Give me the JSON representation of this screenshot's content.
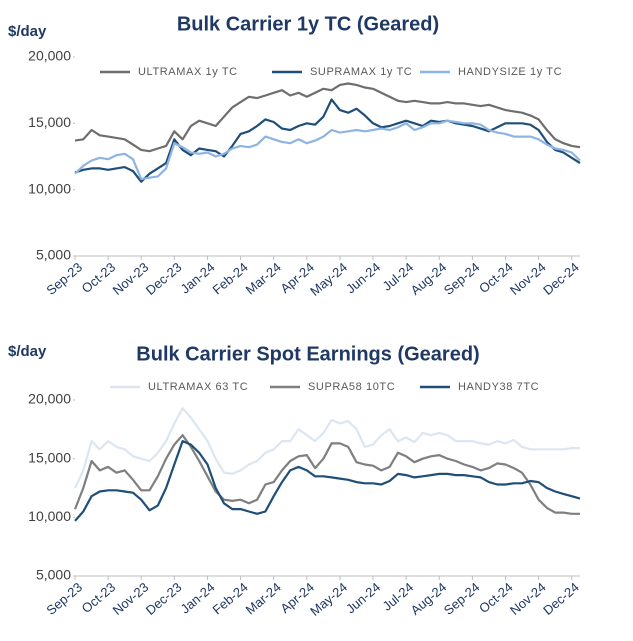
{
  "chart_data": [
    {
      "type": "line",
      "title": "Bulk Carrier 1y TC (Geared)",
      "y_label": "$/day",
      "categories": [
        "Sep-23",
        null,
        null,
        null,
        "Oct-23",
        null,
        null,
        null,
        "Nov-23",
        null,
        null,
        null,
        "Dec-23",
        null,
        null,
        null,
        "Jan-24",
        null,
        null,
        null,
        "Feb-24",
        null,
        null,
        null,
        "Mar-24",
        null,
        null,
        null,
        "Apr-24",
        null,
        null,
        null,
        "May-24",
        null,
        null,
        null,
        "Jun-24",
        null,
        null,
        null,
        "Jul-24",
        null,
        null,
        null,
        "Aug-24",
        null,
        null,
        null,
        "Sep-24",
        null,
        null,
        null,
        "Oct-24",
        null,
        null,
        null,
        "Nov-24",
        null,
        null,
        null,
        "Dec-24",
        null
      ],
      "ylim": [
        5000,
        20000
      ],
      "yticks": [
        {
          "value": 5000,
          "label": "5,000"
        },
        {
          "value": 10000,
          "label": "10,000"
        },
        {
          "value": 15000,
          "label": "15,000"
        },
        {
          "value": 20000,
          "label": "20,000"
        }
      ],
      "series": [
        {
          "name": "ULTRAMAX 1y TC",
          "color": "#6e6e6e",
          "values": [
            13700,
            13800,
            14500,
            14100,
            14000,
            13900,
            13800,
            13400,
            13000,
            12900,
            13100,
            13300,
            14400,
            13800,
            14800,
            15200,
            15000,
            14800,
            15500,
            16200,
            16600,
            17000,
            16900,
            17100,
            17300,
            17500,
            17100,
            17300,
            17000,
            17300,
            17600,
            17500,
            17900,
            18000,
            17900,
            17700,
            17600,
            17300,
            17000,
            16700,
            16600,
            16700,
            16600,
            16500,
            16500,
            16600,
            16500,
            16500,
            16400,
            16300,
            16400,
            16200,
            16000,
            15900,
            15800,
            15600,
            15300,
            14500,
            13800,
            13500,
            13300,
            13200
          ]
        },
        {
          "name": "SUPRAMAX 1y TC",
          "color": "#1f4e79",
          "values": [
            11300,
            11500,
            11600,
            11600,
            11500,
            11600,
            11700,
            11400,
            10600,
            11200,
            11600,
            12000,
            13800,
            13000,
            12600,
            13100,
            13000,
            12900,
            12500,
            13300,
            14200,
            14400,
            14800,
            15300,
            15100,
            14600,
            14500,
            14800,
            15000,
            14900,
            15500,
            16800,
            16000,
            15800,
            16100,
            15600,
            15000,
            14700,
            14800,
            15000,
            15200,
            15000,
            14800,
            15200,
            15100,
            15200,
            15000,
            14900,
            14800,
            14600,
            14400,
            14700,
            15000,
            15000,
            15000,
            14900,
            14500,
            13600,
            13000,
            12800,
            12400,
            12000
          ]
        },
        {
          "name": "HANDYSIZE 1y TC",
          "color": "#8db4e2",
          "values": [
            11200,
            11800,
            12200,
            12400,
            12300,
            12600,
            12700,
            12300,
            10800,
            10900,
            11000,
            11600,
            13500,
            13200,
            12800,
            12700,
            12800,
            12500,
            12700,
            13100,
            13300,
            13200,
            13400,
            14000,
            13800,
            13600,
            13500,
            13800,
            13500,
            13700,
            14000,
            14500,
            14300,
            14400,
            14500,
            14400,
            14500,
            14600,
            14500,
            14700,
            15000,
            14500,
            14700,
            15000,
            15000,
            15200,
            15100,
            15000,
            15000,
            14900,
            14500,
            14300,
            14200,
            14000,
            14000,
            14000,
            13800,
            13400,
            13100,
            13000,
            12800,
            12200
          ]
        }
      ]
    },
    {
      "type": "line",
      "title": "Bulk Carrier Spot Earnings (Geared)",
      "y_label": "$/day",
      "categories": [
        "Sep-23",
        null,
        null,
        null,
        "Oct-23",
        null,
        null,
        null,
        "Nov-23",
        null,
        null,
        null,
        "Dec-23",
        null,
        null,
        null,
        "Jan-24",
        null,
        null,
        null,
        "Feb-24",
        null,
        null,
        null,
        "Mar-24",
        null,
        null,
        null,
        "Apr-24",
        null,
        null,
        null,
        "May-24",
        null,
        null,
        null,
        "Jun-24",
        null,
        null,
        null,
        "Jul-24",
        null,
        null,
        null,
        "Aug-24",
        null,
        null,
        null,
        "Sep-24",
        null,
        null,
        null,
        "Oct-24",
        null,
        null,
        null,
        "Nov-24",
        null,
        null,
        null,
        "Dec-24",
        null
      ],
      "ylim": [
        5000,
        20000
      ],
      "yticks": [
        {
          "value": 5000,
          "label": "5,000"
        },
        {
          "value": 10000,
          "label": "10,000"
        },
        {
          "value": 15000,
          "label": "15,000"
        },
        {
          "value": 20000,
          "label": "20,000"
        }
      ],
      "series": [
        {
          "name": "ULTRAMAX 63 TC",
          "color": "#dce6f2",
          "values": [
            12500,
            14000,
            16500,
            15800,
            16500,
            16000,
            15800,
            15200,
            15000,
            14800,
            15500,
            16500,
            18000,
            19300,
            18500,
            17500,
            16500,
            15000,
            13800,
            13700,
            14000,
            14500,
            14800,
            15500,
            15800,
            16500,
            16500,
            17500,
            17000,
            16500,
            17200,
            18300,
            18000,
            18200,
            17500,
            16000,
            16200,
            17000,
            17500,
            16500,
            16800,
            16400,
            17200,
            17000,
            17200,
            17000,
            16500,
            16500,
            16500,
            16300,
            16200,
            16500,
            16300,
            16600,
            16000,
            15800,
            15800,
            15800,
            15800,
            15800,
            15900,
            15900
          ]
        },
        {
          "name": "SUPRA58 10TC",
          "color": "#7f7f7f",
          "values": [
            10700,
            12500,
            14800,
            14000,
            14300,
            13800,
            14000,
            13200,
            12300,
            12300,
            13500,
            15000,
            16200,
            17000,
            16000,
            14800,
            13500,
            12200,
            11500,
            11400,
            11500,
            11200,
            11500,
            12800,
            13000,
            14000,
            14800,
            15200,
            15300,
            14200,
            15000,
            16300,
            16300,
            16000,
            14700,
            14500,
            14400,
            14000,
            14300,
            15500,
            15200,
            14700,
            15000,
            15200,
            15300,
            15000,
            14800,
            14500,
            14300,
            14000,
            14200,
            14600,
            14500,
            14200,
            13800,
            12800,
            11500,
            10800,
            10400,
            10400,
            10300,
            10300
          ]
        },
        {
          "name": "HANDY38 7TC",
          "color": "#1f4e79",
          "values": [
            9700,
            10500,
            11800,
            12200,
            12300,
            12300,
            12200,
            12100,
            11500,
            10600,
            11000,
            12500,
            14500,
            16500,
            16200,
            15500,
            14500,
            12500,
            11200,
            10700,
            10700,
            10500,
            10300,
            10500,
            11800,
            13000,
            14000,
            14300,
            14000,
            13500,
            13500,
            13400,
            13300,
            13200,
            13000,
            12900,
            12900,
            12800,
            13100,
            13700,
            13600,
            13400,
            13500,
            13600,
            13700,
            13700,
            13600,
            13600,
            13500,
            13400,
            13000,
            12800,
            12800,
            12900,
            12900,
            13100,
            13000,
            12500,
            12200,
            12000,
            11800,
            11600
          ]
        }
      ]
    }
  ]
}
